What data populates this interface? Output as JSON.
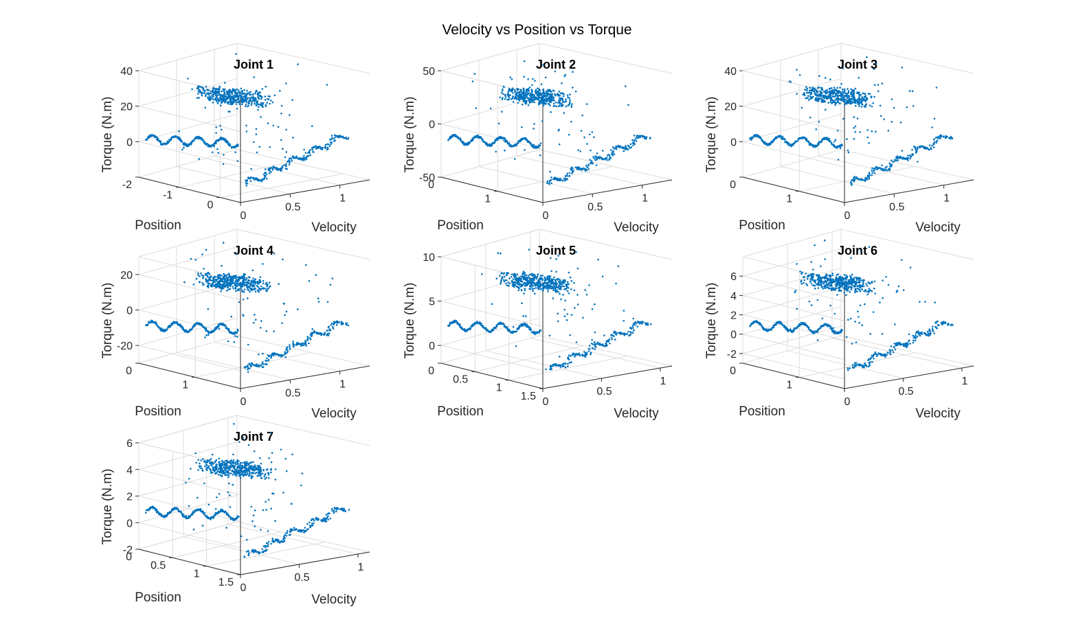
{
  "figure": {
    "title": "Velocity vs Position vs Torque",
    "colors": {
      "points": "#0072BD",
      "axis": "#262626",
      "grid": "#dcdcdc",
      "text": "#262626"
    }
  },
  "chart_data": [
    {
      "type": "scatter",
      "title": "Joint 1",
      "xlabel": "Velocity",
      "ylabel": "Position",
      "zlabel": "Torque (N.m)",
      "xlim": [
        0,
        1.3
      ],
      "ylim": [
        -2,
        0.5
      ],
      "zlim": [
        -20,
        40
      ],
      "xticks": [
        "0",
        "0.5",
        "1"
      ],
      "xtick_values": [
        0,
        0.5,
        1
      ],
      "yticks": [
        "0",
        "-1",
        "-2"
      ],
      "ytick_values": [
        0,
        -1,
        -2
      ],
      "zticks": [
        "0",
        "20",
        "40"
      ],
      "ztick_values": [
        0,
        20,
        40
      ]
    },
    {
      "type": "scatter",
      "title": "Joint 2",
      "xlabel": "Velocity",
      "ylabel": "Position",
      "zlabel": "Torque (N.m)",
      "xlim": [
        0,
        1.3
      ],
      "ylim": [
        0,
        1.8
      ],
      "zlim": [
        -50,
        50
      ],
      "xticks": [
        "0",
        "0.5",
        "1"
      ],
      "xtick_values": [
        0,
        0.5,
        1
      ],
      "yticks": [
        "1",
        "0"
      ],
      "ytick_values": [
        1,
        0
      ],
      "zticks": [
        "50",
        "0",
        "-50"
      ],
      "ztick_values": [
        50,
        0,
        -50
      ]
    },
    {
      "type": "scatter",
      "title": "Joint 3",
      "xlabel": "Velocity",
      "ylabel": "Position",
      "zlabel": "Torque (N.m)",
      "xlim": [
        0,
        1.3
      ],
      "ylim": [
        0,
        1.8
      ],
      "zlim": [
        -20,
        40
      ],
      "xticks": [
        "0",
        "0.5",
        "1"
      ],
      "xtick_values": [
        0,
        0.5,
        1
      ],
      "yticks": [
        "1",
        "0"
      ],
      "ytick_values": [
        1,
        0
      ],
      "zticks": [
        "0",
        "20",
        "40"
      ],
      "ztick_values": [
        0,
        20,
        40
      ]
    },
    {
      "type": "scatter",
      "title": "Joint 4",
      "xlabel": "Velocity",
      "ylabel": "Position",
      "zlabel": "Torque (N.m)",
      "xlim": [
        0,
        1.3
      ],
      "ylim": [
        0,
        1.8
      ],
      "zlim": [
        -30,
        30
      ],
      "xticks": [
        "0",
        "0.5",
        "1"
      ],
      "xtick_values": [
        0,
        0.5,
        1
      ],
      "yticks": [
        "1",
        "0"
      ],
      "ytick_values": [
        1,
        0
      ],
      "zticks": [
        "20",
        "0",
        "-20"
      ],
      "ztick_values": [
        20,
        0,
        -20
      ]
    },
    {
      "type": "scatter",
      "title": "Joint 5",
      "xlabel": "Velocity",
      "ylabel": "Position",
      "zlabel": "Torque (N.m)",
      "xlim": [
        0,
        1.1
      ],
      "ylim": [
        0,
        1.5
      ],
      "zlim": [
        -2,
        10
      ],
      "xticks": [
        "0",
        "0.5",
        "1"
      ],
      "xtick_values": [
        0,
        0.5,
        1
      ],
      "yticks": [
        "1.5",
        "1",
        "0.5",
        "0"
      ],
      "ytick_values": [
        1.5,
        1,
        0.5,
        0
      ],
      "zticks": [
        "10",
        "5",
        "0"
      ],
      "ztick_values": [
        10,
        5,
        0
      ]
    },
    {
      "type": "scatter",
      "title": "Joint 6",
      "xlabel": "Velocity",
      "ylabel": "Position",
      "zlabel": "Torque (N.m)",
      "xlim": [
        0,
        1.1
      ],
      "ylim": [
        0,
        1.8
      ],
      "zlim": [
        -3,
        8
      ],
      "xticks": [
        "0",
        "0.5",
        "1"
      ],
      "xtick_values": [
        0,
        0.5,
        1
      ],
      "yticks": [
        "1",
        "0"
      ],
      "ytick_values": [
        1,
        0
      ],
      "zticks": [
        "6",
        "4",
        "2",
        "0",
        "-2"
      ],
      "ztick_values": [
        6,
        4,
        2,
        0,
        -2
      ]
    },
    {
      "type": "scatter",
      "title": "Joint 7",
      "xlabel": "Velocity",
      "ylabel": "Position",
      "zlabel": "Torque (N.m)",
      "xlim": [
        0,
        1.1
      ],
      "ylim": [
        0,
        1.5
      ],
      "zlim": [
        -2,
        6
      ],
      "xticks": [
        "0",
        "0.5",
        "1"
      ],
      "xtick_values": [
        0,
        0.5,
        1
      ],
      "yticks": [
        "1.5",
        "1",
        "0.5",
        "0"
      ],
      "ytick_values": [
        1.5,
        1,
        0.5,
        0
      ],
      "zticks": [
        "6",
        "4",
        "2",
        "0",
        "-2"
      ],
      "ztick_values": [
        6,
        4,
        2,
        0,
        -2
      ]
    }
  ]
}
